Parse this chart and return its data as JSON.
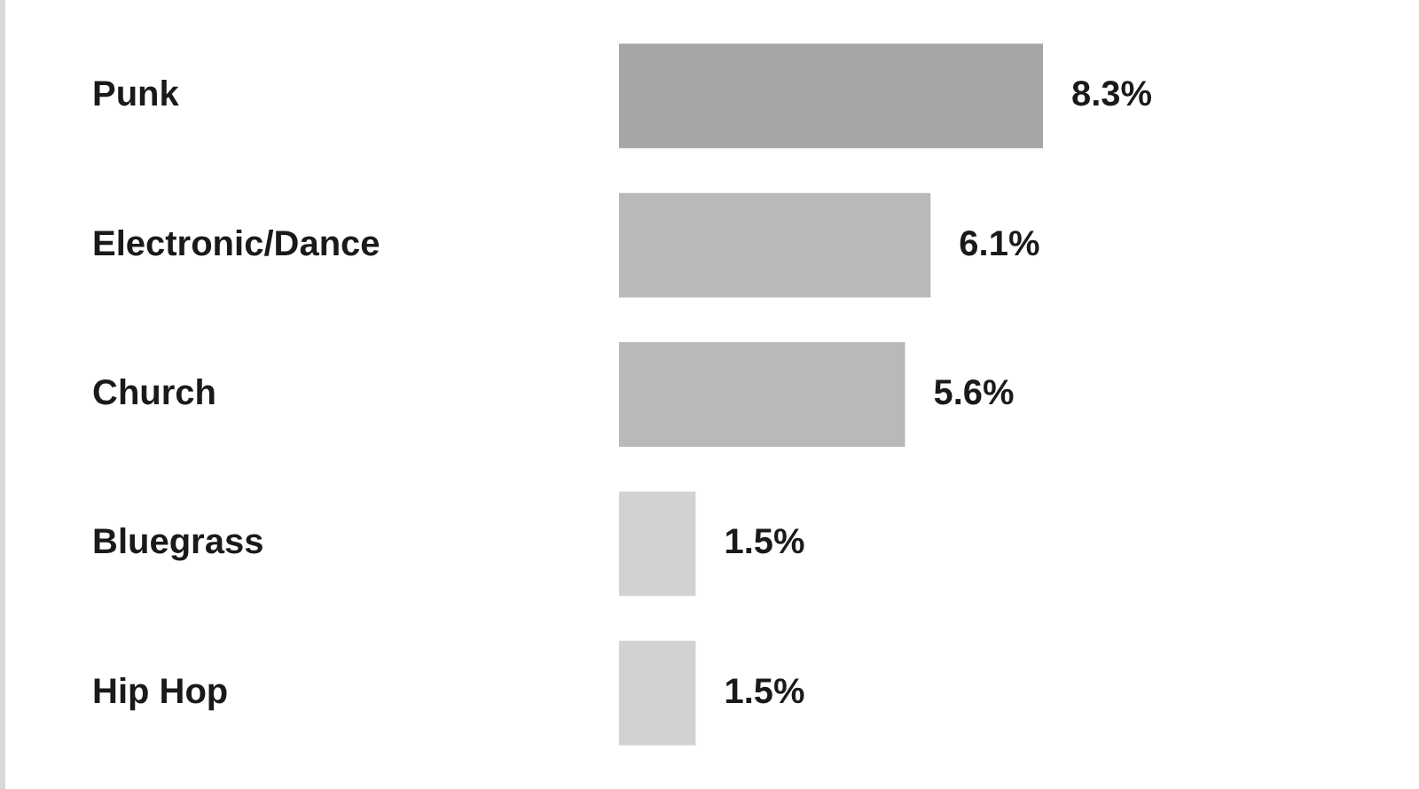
{
  "chart_data": {
    "type": "bar",
    "orientation": "horizontal",
    "categories": [
      "Punk",
      "Electronic/Dance",
      "Church",
      "Bluegrass",
      "Hip Hop"
    ],
    "values": [
      8.3,
      6.1,
      5.6,
      1.5,
      1.5
    ],
    "colors": [
      "#a6a6a8",
      "#b9b9bb",
      "#b9b9bb",
      "#d2d2d4",
      "#d2d2d4"
    ],
    "value_labels": [
      "8.3%",
      "6.1%",
      "5.6%",
      "1.5%",
      "1.5%"
    ]
  }
}
